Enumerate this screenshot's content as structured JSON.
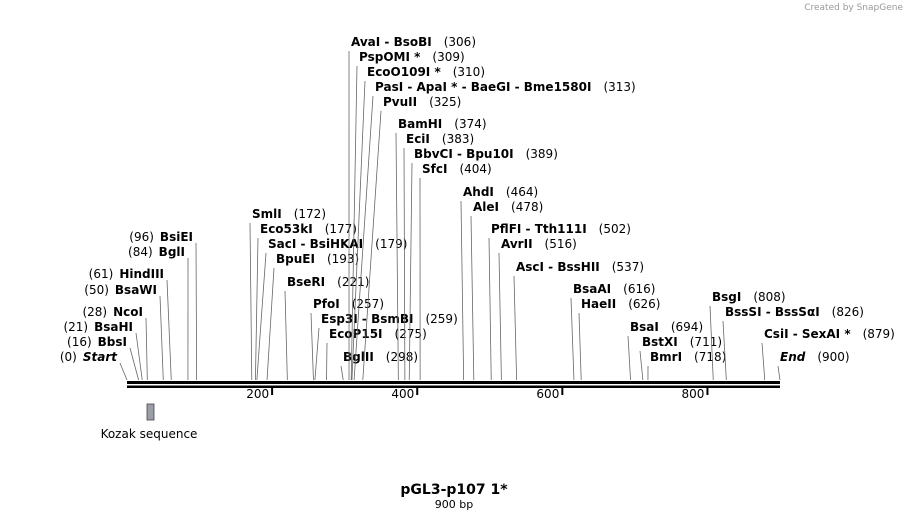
{
  "header": {
    "credit": "Created by SnapGene"
  },
  "title": "pGL3-p107 1*",
  "length": {
    "value": 900,
    "label": "900 bp"
  },
  "ruler_ticks": [
    200,
    400,
    600,
    800
  ],
  "features": [
    {
      "label": "Kozak sequence"
    }
  ],
  "sites": [
    {
      "label": "Start",
      "position": {
        "value": 0,
        "label": "(0)"
      }
    },
    {
      "label": "BbsI",
      "position": {
        "value": 16,
        "label": "(16)"
      }
    },
    {
      "label": "BsaHI",
      "position": {
        "value": 21,
        "label": "(21)"
      }
    },
    {
      "label": "NcoI",
      "position": {
        "value": 28,
        "label": "(28)"
      }
    },
    {
      "label": "BsaWI",
      "position": {
        "value": 50,
        "label": "(50)"
      }
    },
    {
      "label": "HindIII",
      "position": {
        "value": 61,
        "label": "(61)"
      }
    },
    {
      "label": "BglI",
      "position": {
        "value": 84,
        "label": "(84)"
      }
    },
    {
      "label": "BsiEI",
      "position": {
        "value": 96,
        "label": "(96)"
      }
    },
    {
      "label": "SmlI",
      "position": {
        "value": 172,
        "label": "(172)"
      }
    },
    {
      "label": "Eco53kI",
      "position": {
        "value": 177,
        "label": "(177)"
      }
    },
    {
      "label": "SacI  - BsiHKAI",
      "position": {
        "value": 179,
        "label": "(179)"
      }
    },
    {
      "label": "BpuEI",
      "position": {
        "value": 193,
        "label": "(193)"
      }
    },
    {
      "label": "BseRI",
      "position": {
        "value": 221,
        "label": "(221)"
      }
    },
    {
      "label": "PfoI",
      "position": {
        "value": 257,
        "label": "(257)"
      }
    },
    {
      "label": "Esp3I  - BsmBI",
      "position": {
        "value": 259,
        "label": "(259)"
      }
    },
    {
      "label": "EcoP15I",
      "position": {
        "value": 275,
        "label": "(275)"
      }
    },
    {
      "label": "BglII",
      "position": {
        "value": 298,
        "label": "(298)"
      }
    },
    {
      "label": "AvaI  - BsoBI",
      "position": {
        "value": 306,
        "label": "(306)"
      }
    },
    {
      "label": "PspOMI *",
      "position": {
        "value": 309,
        "label": "(309)"
      }
    },
    {
      "label": "EcoO109I *",
      "position": {
        "value": 310,
        "label": "(310)"
      }
    },
    {
      "label": "PasI  - ApaI *  - BaeGI  - Bme1580I",
      "position": {
        "value": 313,
        "label": "(313)"
      }
    },
    {
      "label": "PvuII",
      "position": {
        "value": 325,
        "label": "(325)"
      }
    },
    {
      "label": "BamHI",
      "position": {
        "value": 374,
        "label": "(374)"
      }
    },
    {
      "label": "EciI",
      "position": {
        "value": 383,
        "label": "(383)"
      }
    },
    {
      "label": "BbvCI  - Bpu10I",
      "position": {
        "value": 389,
        "label": "(389)"
      }
    },
    {
      "label": "SfcI",
      "position": {
        "value": 404,
        "label": "(404)"
      }
    },
    {
      "label": "AhdI",
      "position": {
        "value": 464,
        "label": "(464)"
      }
    },
    {
      "label": "AleI",
      "position": {
        "value": 478,
        "label": "(478)"
      }
    },
    {
      "label": "PflFI  - Tth111I",
      "position": {
        "value": 502,
        "label": "(502)"
      }
    },
    {
      "label": "AvrII",
      "position": {
        "value": 516,
        "label": "(516)"
      }
    },
    {
      "label": "AscI  - BssHII",
      "position": {
        "value": 537,
        "label": "(537)"
      }
    },
    {
      "label": "BsaAI",
      "position": {
        "value": 616,
        "label": "(616)"
      }
    },
    {
      "label": "HaeII",
      "position": {
        "value": 626,
        "label": "(626)"
      }
    },
    {
      "label": "BsaI",
      "position": {
        "value": 694,
        "label": "(694)"
      }
    },
    {
      "label": "BstXI",
      "position": {
        "value": 711,
        "label": "(711)"
      }
    },
    {
      "label": "BmrI",
      "position": {
        "value": 718,
        "label": "(718)"
      }
    },
    {
      "label": "BsgI",
      "position": {
        "value": 808,
        "label": "(808)"
      }
    },
    {
      "label": "BssSI  - BssSαI",
      "position": {
        "value": 826,
        "label": "(826)"
      }
    },
    {
      "label": "CsiI  - SexAI *",
      "position": {
        "value": 879,
        "label": "(879)"
      }
    },
    {
      "label": "End",
      "position": {
        "value": 900,
        "label": "(900)"
      }
    }
  ]
}
